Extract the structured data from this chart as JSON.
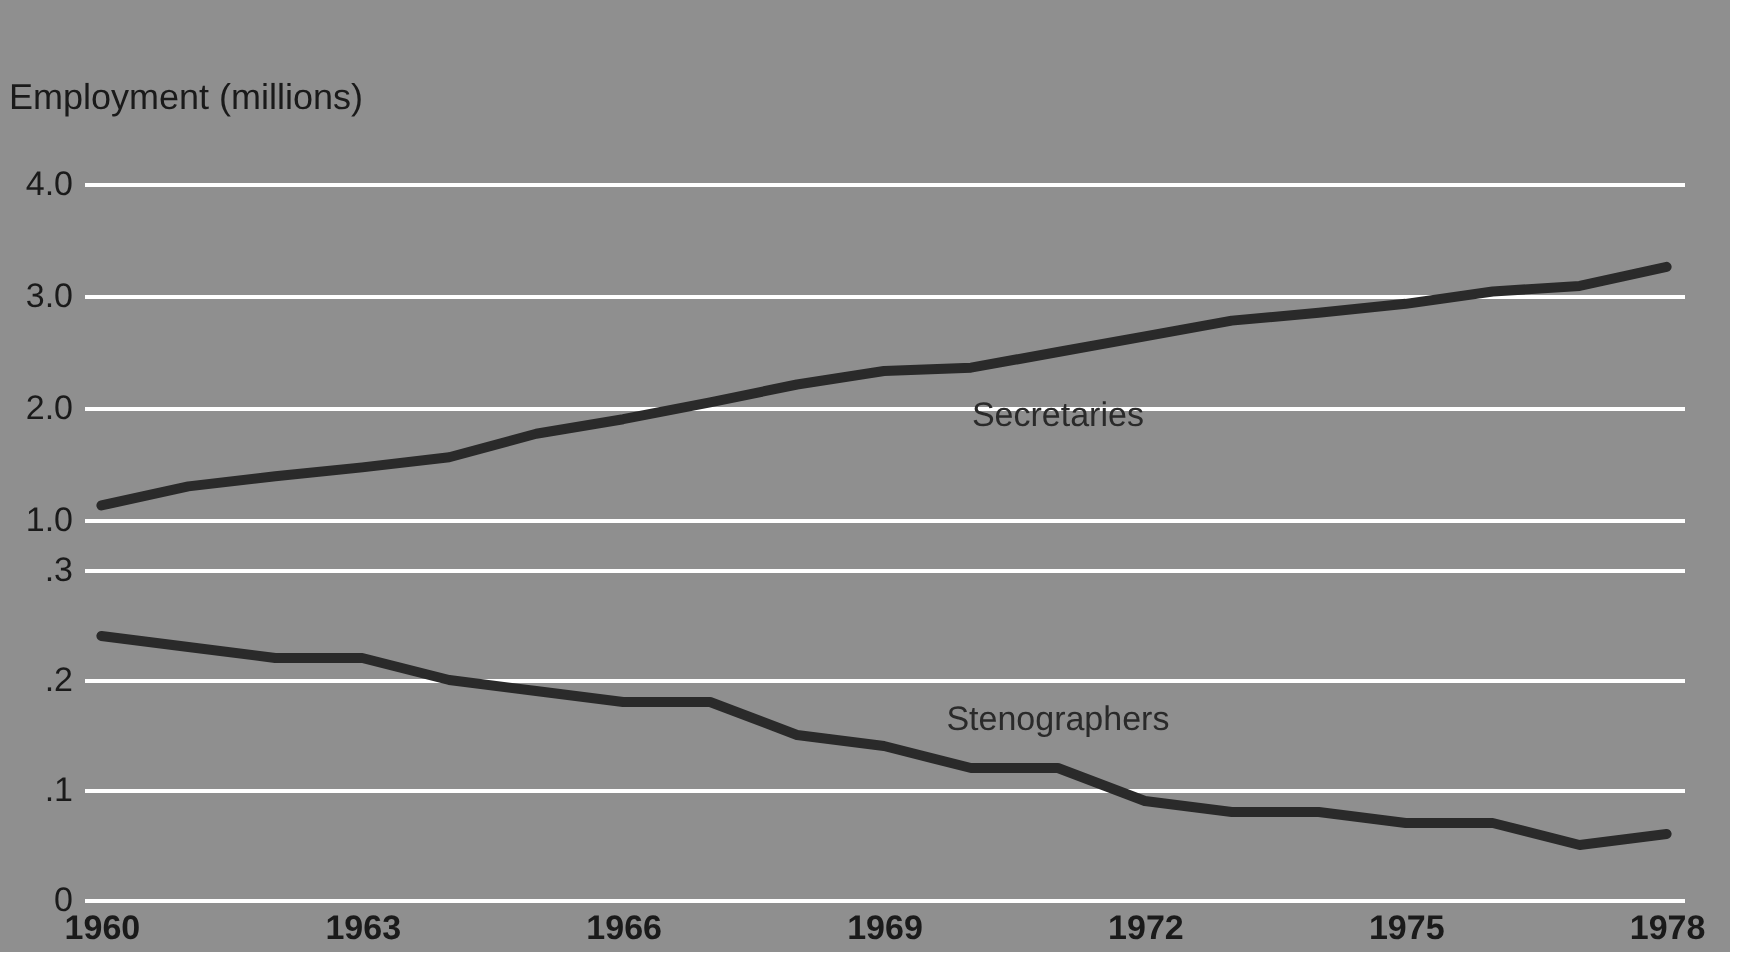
{
  "chart_data": [
    {
      "type": "line",
      "ylabel": "Employment (millions)",
      "x": [
        1960,
        1961,
        1962,
        1963,
        1964,
        1965,
        1966,
        1967,
        1968,
        1969,
        1970,
        1971,
        1972,
        1973,
        1974,
        1975,
        1976,
        1977,
        1978
      ],
      "xlim": [
        1959.8,
        1978.2
      ],
      "xticks": [
        1960,
        1963,
        1966,
        1969,
        1972,
        1975,
        1978
      ],
      "ylim": [
        1.0,
        4.0
      ],
      "yticks": [
        {
          "value": 1.0,
          "label": "1.0"
        },
        {
          "value": 2.0,
          "label": "2.0"
        },
        {
          "value": 3.0,
          "label": "3.0"
        },
        {
          "value": 4.0,
          "label": "4.0"
        }
      ],
      "tick_labels": "y",
      "grid": "y",
      "legend": false,
      "series": [
        {
          "name": "Secretaries",
          "color": "#2a2a2a",
          "values": [
            1.13,
            1.3,
            1.39,
            1.47,
            1.56,
            1.77,
            1.9,
            2.05,
            2.21,
            2.33,
            2.36,
            2.5,
            2.64,
            2.78,
            2.85,
            2.93,
            3.04,
            3.09,
            3.26
          ]
        }
      ]
    },
    {
      "type": "line",
      "x": [
        1960,
        1961,
        1962,
        1963,
        1964,
        1965,
        1966,
        1967,
        1968,
        1969,
        1970,
        1971,
        1972,
        1973,
        1974,
        1975,
        1976,
        1977,
        1978
      ],
      "xlim": [
        1959.8,
        1978.2
      ],
      "xticks": [
        1960,
        1963,
        1966,
        1969,
        1972,
        1975,
        1978
      ],
      "ylim": [
        0,
        0.3
      ],
      "yticks": [
        0,
        {
          "value": 0.1,
          "label": ".1"
        },
        {
          "value": 0.2,
          "label": ".2"
        },
        {
          "value": 0.3,
          "label": ".3"
        }
      ],
      "grid": "y",
      "legend": false,
      "series": [
        {
          "name": "Stenographers",
          "color": "#2a2a2a",
          "values": [
            0.24,
            0.23,
            0.22,
            0.22,
            0.2,
            0.19,
            0.18,
            0.18,
            0.15,
            0.14,
            0.12,
            0.12,
            0.09,
            0.08,
            0.08,
            0.07,
            0.07,
            0.05,
            0.06
          ]
        }
      ]
    }
  ]
}
